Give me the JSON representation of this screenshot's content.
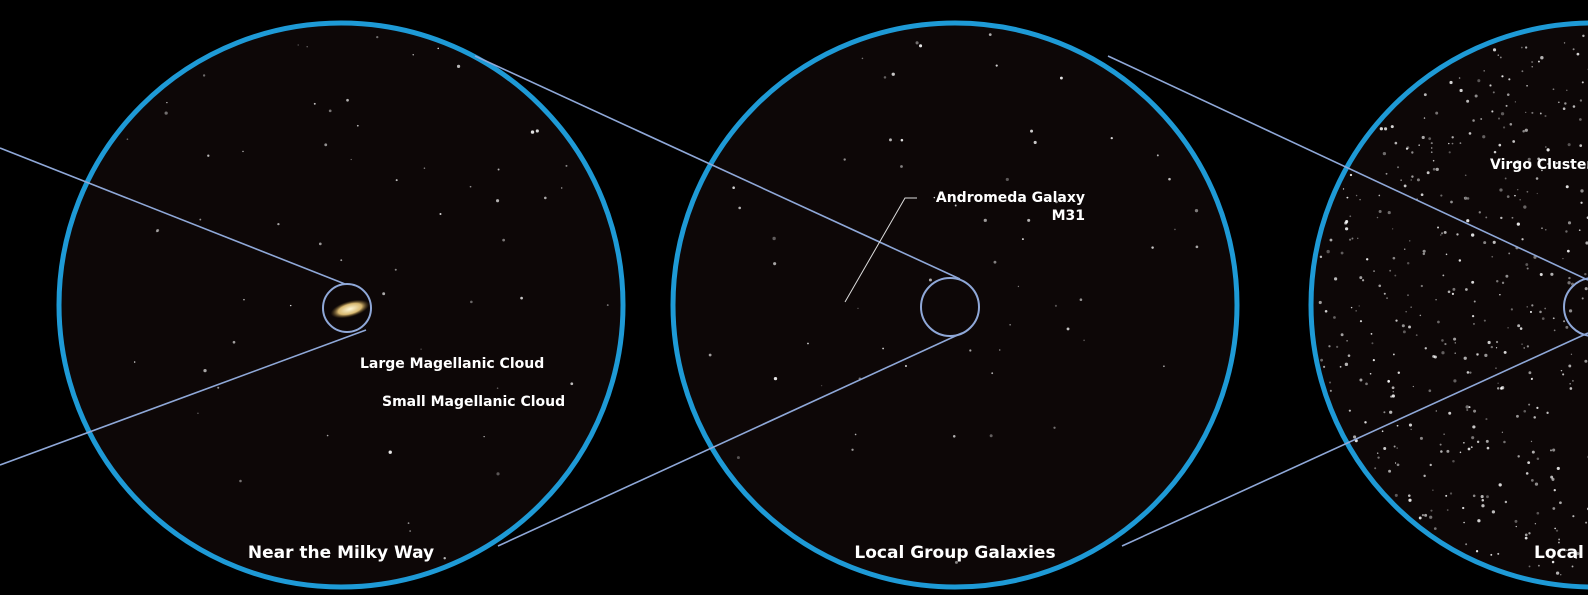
{
  "panels": [
    {
      "title": "Near the Milky Way",
      "labels": [
        "Large Magellanic Cloud",
        "Small Magellanic Cloud"
      ]
    },
    {
      "title": "Local Group Galaxies",
      "labels": [
        "Andromeda Galaxy",
        "M31"
      ]
    },
    {
      "title": "Local Super Cluster",
      "labels": [
        "Virgo Cluster"
      ]
    }
  ]
}
